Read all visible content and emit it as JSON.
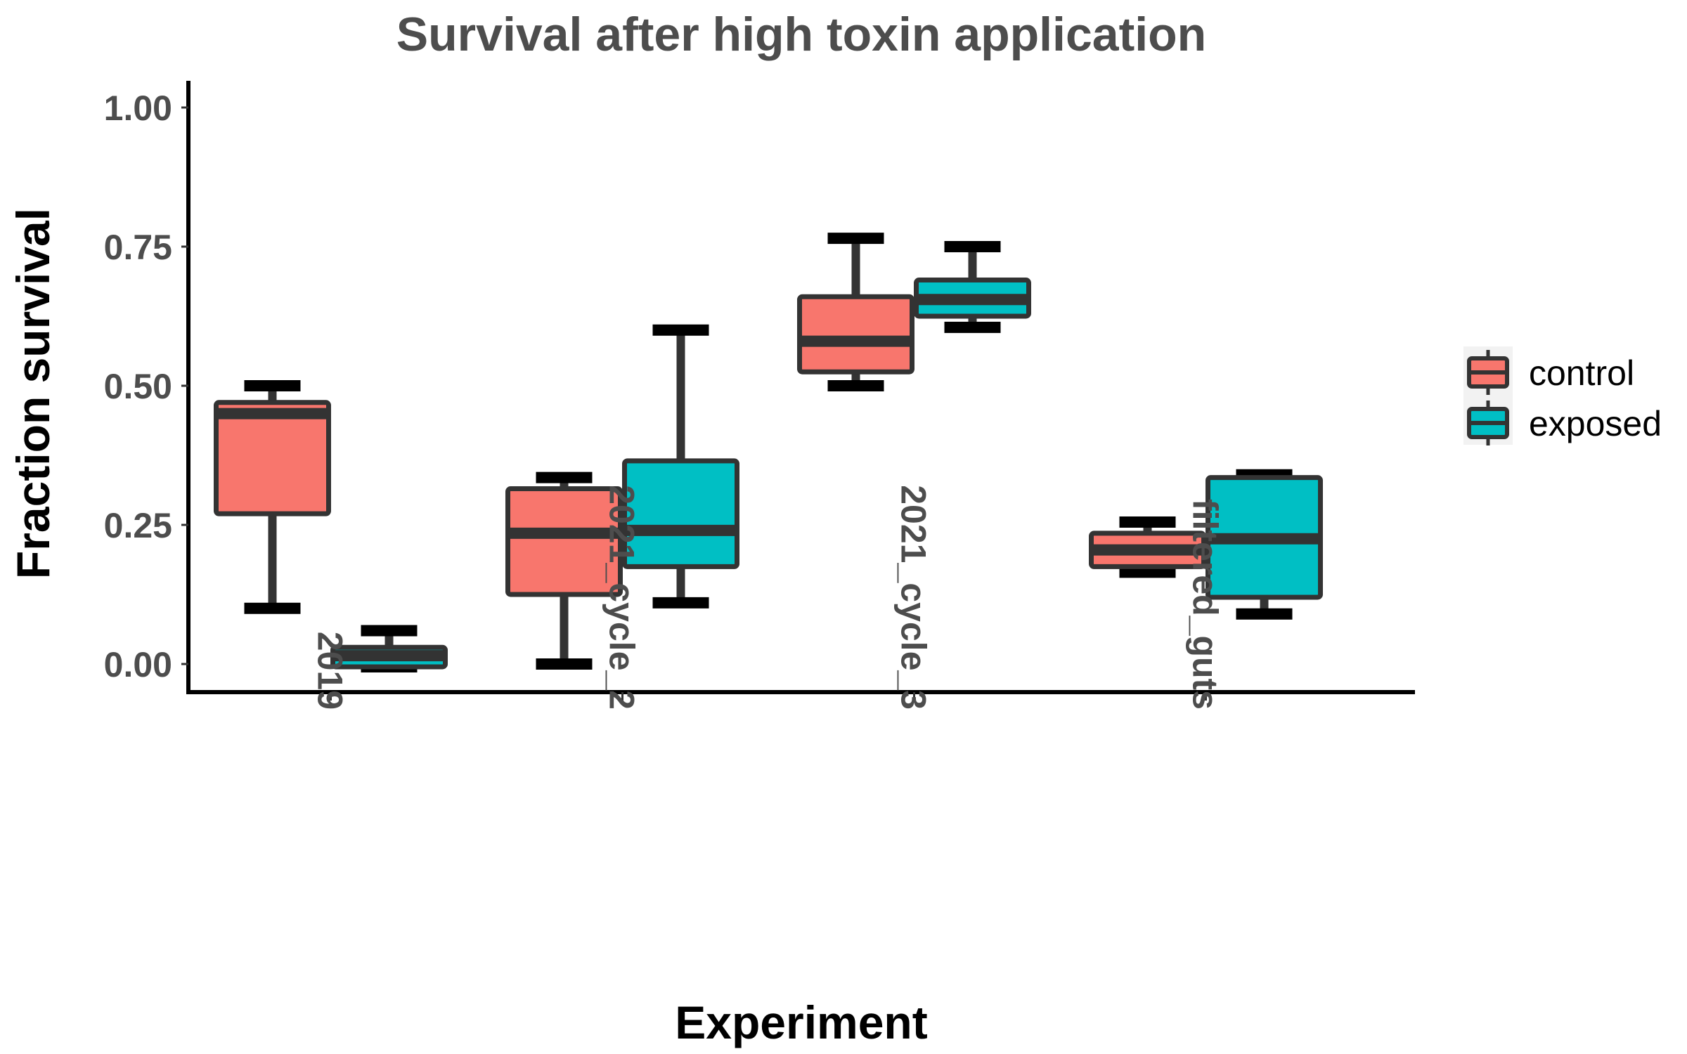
{
  "chart_data": {
    "type": "boxplot",
    "title": "Survival after high toxin application",
    "xlabel": "Experiment",
    "ylabel": "Fraction survival",
    "ylim": [
      -0.05,
      1.05
    ],
    "yticks": [
      "0.00",
      "0.25",
      "0.50",
      "0.75",
      "1.00"
    ],
    "ytick_values": [
      0,
      0.25,
      0.5,
      0.75,
      1.0
    ],
    "categories": [
      "2019",
      "2021_cycle_2",
      "2021_cycle_3",
      "filtered_guts"
    ],
    "grid": false,
    "legend_position": "right",
    "series": [
      {
        "name": "control",
        "color": "#F8766D",
        "boxes": [
          {
            "min": 0.1,
            "q1": 0.27,
            "median": 0.45,
            "q3": 0.47,
            "max": 0.5
          },
          {
            "min": 0.0,
            "q1": 0.125,
            "median": 0.235,
            "q3": 0.315,
            "max": 0.335
          },
          {
            "min": 0.5,
            "q1": 0.525,
            "median": 0.58,
            "q3": 0.66,
            "max": 0.765
          },
          {
            "min": 0.165,
            "q1": 0.175,
            "median": 0.205,
            "q3": 0.235,
            "max": 0.255
          }
        ]
      },
      {
        "name": "exposed",
        "color": "#00BFC4",
        "boxes": [
          {
            "min": -0.005,
            "q1": -0.005,
            "median": 0.015,
            "q3": 0.03,
            "max": 0.06
          },
          {
            "min": 0.11,
            "q1": 0.175,
            "median": 0.24,
            "q3": 0.365,
            "max": 0.6
          },
          {
            "min": 0.605,
            "q1": 0.625,
            "median": 0.655,
            "q3": 0.69,
            "max": 0.75
          },
          {
            "min": 0.09,
            "q1": 0.12,
            "median": 0.225,
            "q3": 0.335,
            "max": 0.34
          }
        ]
      }
    ]
  }
}
